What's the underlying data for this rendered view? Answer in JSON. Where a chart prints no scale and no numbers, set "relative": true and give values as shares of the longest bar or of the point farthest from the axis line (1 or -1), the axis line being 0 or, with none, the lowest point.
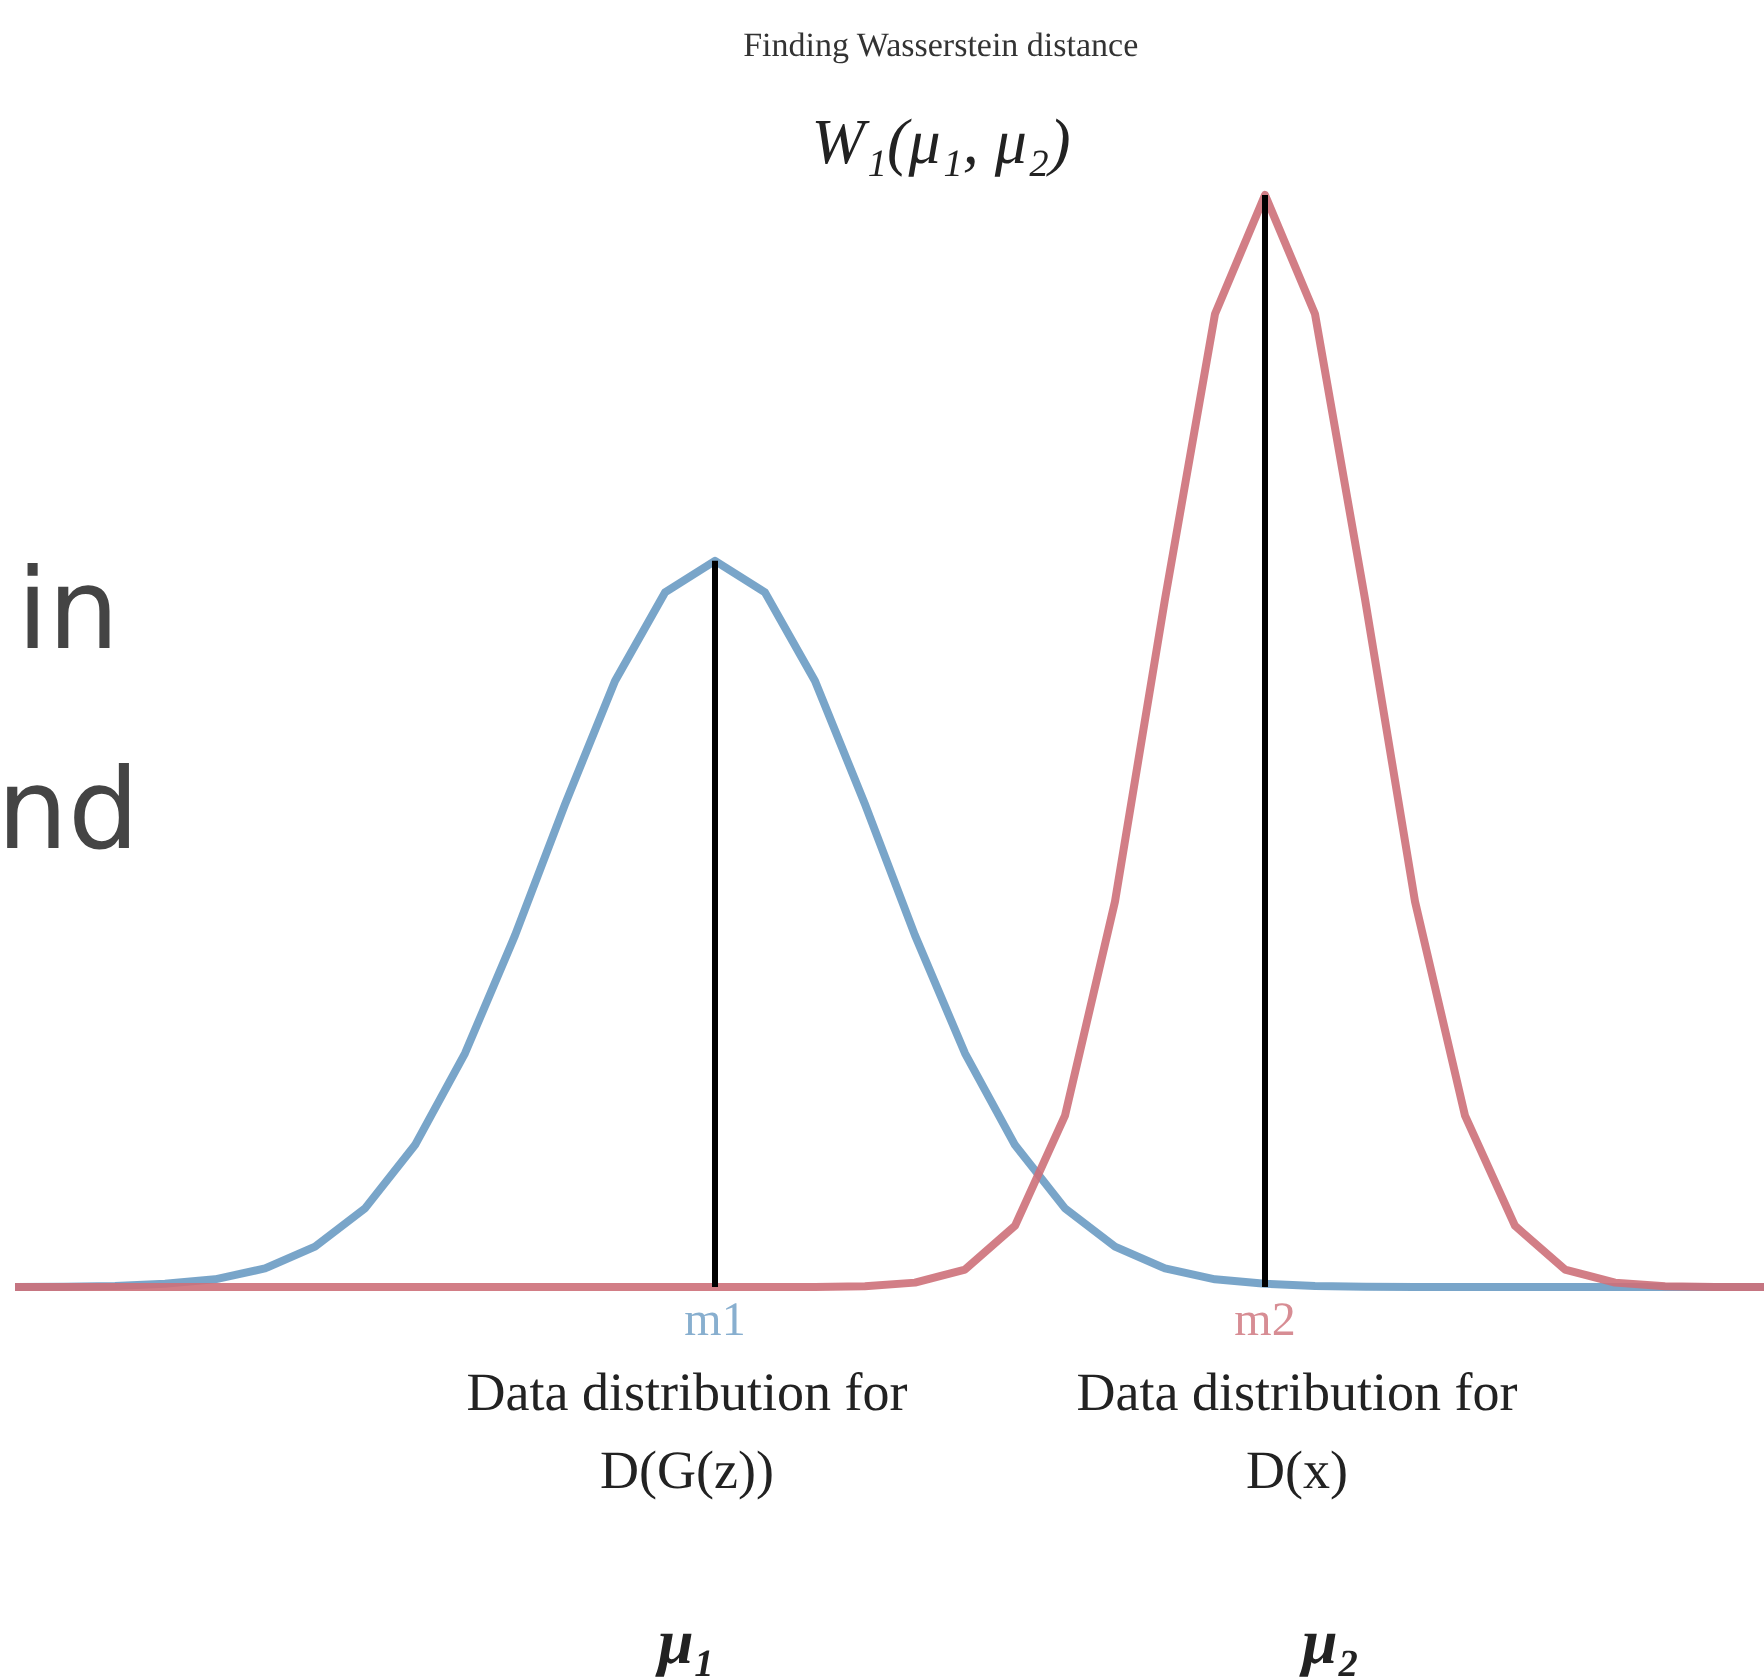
{
  "chart_data": {
    "type": "line",
    "title": "Finding Wasserstein distance",
    "subtitle": "W₁(μ₁, μ₂)",
    "relative": true,
    "categories": [
      null,
      null,
      null,
      null,
      null,
      null,
      null,
      null,
      null,
      null,
      null,
      null,
      null,
      null,
      "m1",
      null,
      null,
      null,
      null,
      null,
      null,
      null,
      null,
      null,
      null,
      "m2",
      null,
      null,
      null,
      null,
      null,
      null,
      null,
      null,
      null,
      null
    ],
    "series": [
      {
        "color": "#6a9bc3",
        "values": [
          0.0001,
          0.0003,
          0.001,
          0.003,
          0.007,
          0.017,
          0.037,
          0.072,
          0.13,
          0.214,
          0.322,
          0.442,
          0.555,
          0.636,
          0.665,
          0.636,
          0.555,
          0.442,
          0.322,
          0.214,
          0.13,
          0.072,
          0.037,
          0.017,
          0.007,
          0.003,
          0.001,
          0.0003,
          0.0001,
          0,
          0,
          0,
          0,
          0,
          0,
          0
        ]
      },
      {
        "color": "#cd7079",
        "values": [
          0,
          0,
          0,
          0,
          0,
          0,
          0,
          0,
          0,
          0,
          0,
          0,
          0,
          0,
          0,
          0,
          0.0001,
          0.0006,
          0.004,
          0.016,
          0.056,
          0.157,
          0.353,
          0.63,
          0.891,
          1,
          0.891,
          0.63,
          0.353,
          0.157,
          0.056,
          0.016,
          0.004,
          0.0006,
          0.0001,
          0
        ]
      }
    ],
    "ref_lines": [
      {
        "axis": "x",
        "value": "m1",
        "color": "#000000"
      },
      {
        "axis": "x",
        "value": "m2",
        "color": "#000000"
      }
    ],
    "annotations": [
      "Data distribution for\nD(G(z))",
      "Data distribution for\nD(x)",
      "μ₁",
      "μ₂",
      "in",
      "nd"
    ]
  }
}
